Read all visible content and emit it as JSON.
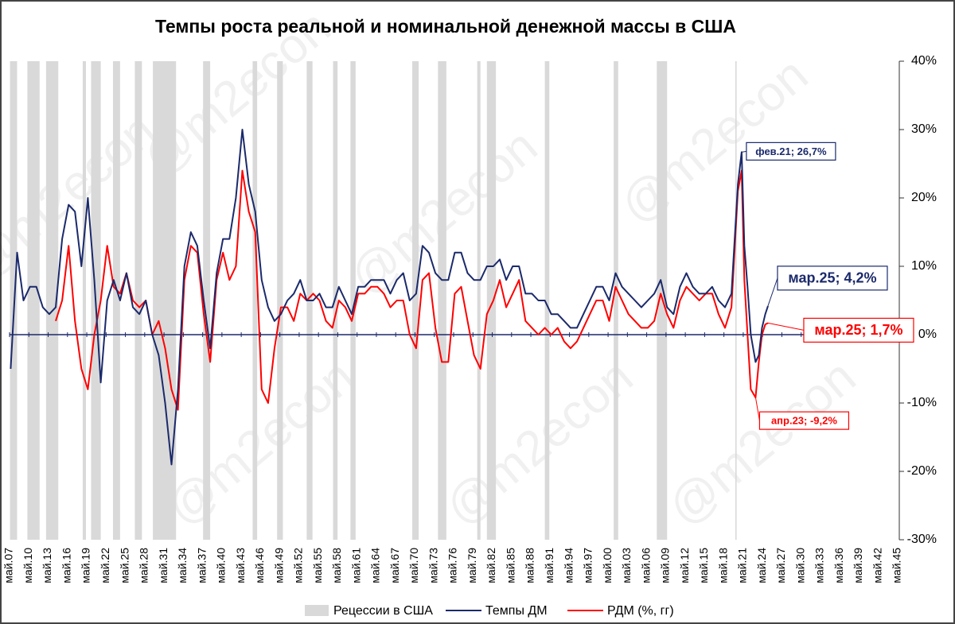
{
  "chart_data": {
    "type": "line",
    "title": "Темпы роста реальной и номинальной денежной массы в США",
    "watermark": "@m2econ",
    "xlim": [
      1907.33,
      2045.33
    ],
    "xticks": [
      {
        "value": 1907.33,
        "label": "май.07"
      },
      {
        "value": 1910.33,
        "label": "май.10"
      },
      {
        "value": 1913.33,
        "label": "май.13"
      },
      {
        "value": 1916.33,
        "label": "май.16"
      },
      {
        "value": 1919.33,
        "label": "май.19"
      },
      {
        "value": 1922.33,
        "label": "май.22"
      },
      {
        "value": 1925.33,
        "label": "май.25"
      },
      {
        "value": 1928.33,
        "label": "май.28"
      },
      {
        "value": 1931.33,
        "label": "май.31"
      },
      {
        "value": 1934.33,
        "label": "май.34"
      },
      {
        "value": 1937.33,
        "label": "май.37"
      },
      {
        "value": 1940.33,
        "label": "май.40"
      },
      {
        "value": 1943.33,
        "label": "май.43"
      },
      {
        "value": 1946.33,
        "label": "май.46"
      },
      {
        "value": 1949.33,
        "label": "май.49"
      },
      {
        "value": 1952.33,
        "label": "май.52"
      },
      {
        "value": 1955.33,
        "label": "май.55"
      },
      {
        "value": 1958.33,
        "label": "май.58"
      },
      {
        "value": 1961.33,
        "label": "май.61"
      },
      {
        "value": 1964.33,
        "label": "май.64"
      },
      {
        "value": 1967.33,
        "label": "май.67"
      },
      {
        "value": 1970.33,
        "label": "май.70"
      },
      {
        "value": 1973.33,
        "label": "май.73"
      },
      {
        "value": 1976.33,
        "label": "май.76"
      },
      {
        "value": 1979.33,
        "label": "май.79"
      },
      {
        "value": 1982.33,
        "label": "май.82"
      },
      {
        "value": 1985.33,
        "label": "май.85"
      },
      {
        "value": 1988.33,
        "label": "май.88"
      },
      {
        "value": 1991.33,
        "label": "май.91"
      },
      {
        "value": 1994.33,
        "label": "май.94"
      },
      {
        "value": 1997.33,
        "label": "май.97"
      },
      {
        "value": 2000.33,
        "label": "май.00"
      },
      {
        "value": 2003.33,
        "label": "май.03"
      },
      {
        "value": 2006.33,
        "label": "май.06"
      },
      {
        "value": 2009.33,
        "label": "май.09"
      },
      {
        "value": 2012.33,
        "label": "май.12"
      },
      {
        "value": 2015.33,
        "label": "май.15"
      },
      {
        "value": 2018.33,
        "label": "май.18"
      },
      {
        "value": 2021.33,
        "label": "май.21"
      },
      {
        "value": 2024.33,
        "label": "май.24"
      },
      {
        "value": 2027.33,
        "label": "май.27"
      },
      {
        "value": 2030.33,
        "label": "май.30"
      },
      {
        "value": 2033.33,
        "label": "май.33"
      },
      {
        "value": 2036.33,
        "label": "май.36"
      },
      {
        "value": 2039.33,
        "label": "май.39"
      },
      {
        "value": 2042.33,
        "label": "май.42"
      },
      {
        "value": 2045.33,
        "label": "май.45"
      }
    ],
    "ylim": [
      -30,
      40
    ],
    "yticks": [
      {
        "value": 40,
        "label": "40%"
      },
      {
        "value": 30,
        "label": "30%"
      },
      {
        "value": 20,
        "label": "20%"
      },
      {
        "value": 10,
        "label": "10%"
      },
      {
        "value": 0,
        "label": "0%"
      },
      {
        "value": -10,
        "label": "-10%"
      },
      {
        "value": -20,
        "label": "-20%"
      },
      {
        "value": -30,
        "label": "-30%"
      }
    ],
    "recessions": {
      "name": "Рецессии в США",
      "color": "#d9d9d9",
      "periods": [
        [
          1907.4,
          1908.5
        ],
        [
          1910.1,
          1912.0
        ],
        [
          1913.0,
          1914.9
        ],
        [
          1918.7,
          1919.2
        ],
        [
          1920.0,
          1921.5
        ],
        [
          1923.4,
          1924.5
        ],
        [
          1926.8,
          1927.9
        ],
        [
          1929.6,
          1933.2
        ],
        [
          1937.4,
          1938.5
        ],
        [
          1945.1,
          1945.8
        ],
        [
          1948.9,
          1949.8
        ],
        [
          1953.5,
          1954.4
        ],
        [
          1957.6,
          1958.3
        ],
        [
          1960.3,
          1961.1
        ],
        [
          1969.9,
          1970.9
        ],
        [
          1973.9,
          1975.2
        ],
        [
          1980.0,
          1980.5
        ],
        [
          1981.5,
          1982.9
        ],
        [
          1990.5,
          1991.2
        ],
        [
          2001.2,
          2001.9
        ],
        [
          2007.9,
          2009.5
        ],
        [
          2020.1,
          2020.3
        ]
      ]
    },
    "x": [
      1907.5,
      1908.5,
      1909.5,
      1910.5,
      1911.5,
      1912.5,
      1913.5,
      1914.5,
      1915.5,
      1916.5,
      1917.5,
      1918.5,
      1919.5,
      1920.5,
      1921.5,
      1922.5,
      1923.5,
      1924.5,
      1925.5,
      1926.5,
      1927.5,
      1928.5,
      1929.5,
      1930.5,
      1931.5,
      1932.5,
      1933.5,
      1934.5,
      1935.5,
      1936.5,
      1937.5,
      1938.5,
      1939.5,
      1940.5,
      1941.5,
      1942.5,
      1943.5,
      1944.5,
      1945.5,
      1946.5,
      1947.5,
      1948.5,
      1949.5,
      1950.5,
      1951.5,
      1952.5,
      1953.5,
      1954.5,
      1955.5,
      1956.5,
      1957.5,
      1958.5,
      1959.5,
      1960.5,
      1961.5,
      1962.5,
      1963.5,
      1964.5,
      1965.5,
      1966.5,
      1967.5,
      1968.5,
      1969.5,
      1970.5,
      1971.5,
      1972.5,
      1973.5,
      1974.5,
      1975.5,
      1976.5,
      1977.5,
      1978.5,
      1979.5,
      1980.5,
      1981.5,
      1982.5,
      1983.5,
      1984.5,
      1985.5,
      1986.5,
      1987.5,
      1988.5,
      1989.5,
      1990.5,
      1991.5,
      1992.5,
      1993.5,
      1994.5,
      1995.5,
      1996.5,
      1997.5,
      1998.5,
      1999.5,
      2000.5,
      2001.5,
      2002.5,
      2003.5,
      2004.5,
      2005.5,
      2006.5,
      2007.5,
      2008.5,
      2009.5,
      2010.5,
      2011.5,
      2012.5,
      2013.5,
      2014.5,
      2015.5,
      2016.5,
      2017.5,
      2018.5,
      2019.5,
      2020.5,
      2021.08,
      2021.5,
      2022,
      2022.5,
      2023.25,
      2023.75,
      2024.25,
      2024.75,
      2025.17
    ],
    "series": [
      {
        "name": "Темпы ДМ",
        "color": "#1b2a6b",
        "values": [
          -5,
          12,
          5,
          7,
          7,
          4,
          3,
          4,
          14,
          19,
          18,
          10,
          20,
          8,
          -7,
          5,
          8,
          5,
          9,
          4,
          3,
          5,
          0,
          -3,
          -10,
          -19,
          -8,
          10,
          15,
          13,
          5,
          -2,
          9,
          14,
          14,
          20,
          30,
          22,
          18,
          8,
          4,
          2,
          3,
          5,
          6,
          8,
          5,
          5,
          6,
          4,
          4,
          7,
          5,
          3,
          7,
          7,
          8,
          8,
          8,
          6,
          8,
          9,
          5,
          6,
          13,
          12,
          9,
          8,
          8,
          12,
          12,
          9,
          8,
          8,
          10,
          10,
          11,
          8,
          10,
          10,
          6,
          6,
          5,
          5,
          3,
          3,
          2,
          1,
          1,
          3,
          5,
          7,
          7,
          5,
          9,
          7,
          6,
          5,
          4,
          5,
          6,
          8,
          4,
          3,
          7,
          9,
          7,
          6,
          6,
          7,
          5,
          4,
          6,
          22,
          26.7,
          13,
          7,
          0,
          -4,
          -3,
          1,
          3,
          4.2
        ]
      },
      {
        "name": "РДМ (%, гг)",
        "color": "#ff0000",
        "values": [
          null,
          null,
          null,
          null,
          null,
          null,
          null,
          2,
          5,
          13,
          2,
          -5,
          -8,
          0,
          5,
          13,
          7,
          6,
          9,
          5,
          4,
          5,
          0,
          2,
          -2,
          -8,
          -11,
          8,
          13,
          12,
          3,
          -4,
          8,
          12,
          8,
          10,
          24,
          18,
          15,
          -8,
          -10,
          -2,
          4,
          4,
          2,
          6,
          5,
          6,
          5,
          2,
          1,
          5,
          4,
          2,
          6,
          6,
          7,
          7,
          6,
          4,
          5,
          5,
          0,
          -2,
          8,
          9,
          1,
          -4,
          -4,
          6,
          7,
          2,
          -3,
          -5,
          3,
          5,
          8,
          4,
          6,
          8,
          2,
          1,
          0,
          1,
          0,
          1,
          -1,
          -2,
          -1,
          1,
          3,
          5,
          5,
          2,
          7,
          5,
          3,
          2,
          1,
          1,
          2,
          6,
          3,
          1,
          5,
          7,
          6,
          5,
          6,
          6,
          3,
          1,
          4,
          21,
          24,
          8,
          0,
          -8,
          -9.2,
          -4,
          0,
          1.5,
          1.7
        ]
      }
    ],
    "annotations": [
      {
        "text": "фев.21; 26,7%",
        "x": 2021.08,
        "y": 26.7,
        "color": "#1b2a6b"
      },
      {
        "text": "мар.25; 4,2%",
        "x": 2025.17,
        "y": 4.2,
        "color": "#1b2a6b"
      },
      {
        "text": "мар.25; 1,7%",
        "x": 2025.17,
        "y": 1.7,
        "color": "#ff0000"
      },
      {
        "text": "апр.23; -9,2%",
        "x": 2023.25,
        "y": -9.2,
        "color": "#ff0000"
      }
    ]
  }
}
